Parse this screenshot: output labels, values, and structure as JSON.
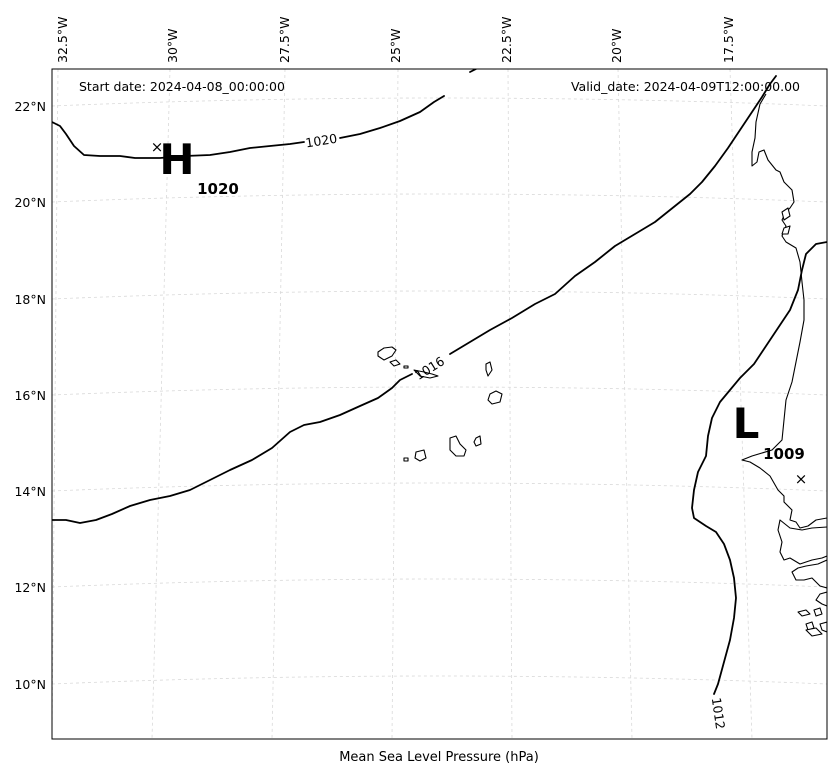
{
  "header": {
    "start_date": "Start date: 2024-04-08_00:00:00",
    "valid_date": "Valid_date: 2024-04-09T12:00:00.00"
  },
  "footer": {
    "title": "Mean Sea Level Pressure (hPa)"
  },
  "axes": {
    "lon_ticks": [
      "32.5°W",
      "30°W",
      "27.5°W",
      "25°W",
      "22.5°W",
      "20°W",
      "17.5°W"
    ],
    "lat_ticks": [
      "22°N",
      "20°N",
      "18°N",
      "16°N",
      "14°N",
      "12°N",
      "10°N"
    ]
  },
  "isobars": {
    "label_1020": "1020",
    "label_1016": "1016",
    "label_1012": "1012"
  },
  "centers": {
    "high": {
      "letter": "H",
      "value": "1020"
    },
    "low": {
      "letter": "L",
      "value": "1009"
    }
  },
  "colors": {
    "isobar": "#000000",
    "coastline": "#000000",
    "grid": "#d9d9d9",
    "background": "#ffffff"
  }
}
